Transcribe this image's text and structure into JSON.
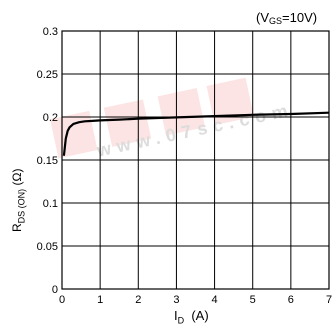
{
  "chart_data": {
    "type": "line",
    "condition_parts": {
      "open": "(V",
      "sub": "GS",
      "rest": "=10V)"
    },
    "xlabel_parts": {
      "main": "I",
      "sub": "D",
      "unit": "  (A)"
    },
    "ylabel_parts": {
      "main": "R",
      "sub": "DS (ON)",
      "unit": " (Ω)"
    },
    "xlim": [
      0,
      7
    ],
    "ylim": [
      0,
      0.3
    ],
    "x_ticks": [
      "0",
      "1",
      "2",
      "3",
      "4",
      "5",
      "6",
      "7"
    ],
    "y_ticks": [
      "0",
      "0.05",
      "0.1",
      "0.15",
      "0.2",
      "0.25",
      "0.3"
    ],
    "grid": true,
    "series": [
      {
        "color": "#000000",
        "x": [
          0.05,
          0.1,
          0.15,
          0.2,
          0.3,
          0.45,
          0.6,
          0.8,
          1.0,
          1.5,
          2.0,
          3.0,
          4.0,
          5.0,
          6.0,
          7.0
        ],
        "y": [
          0.155,
          0.175,
          0.184,
          0.188,
          0.192,
          0.194,
          0.195,
          0.1955,
          0.196,
          0.197,
          0.198,
          0.1995,
          0.201,
          0.2025,
          0.2035,
          0.205
        ]
      }
    ]
  },
  "watermark": {
    "text": "www.07sc.com",
    "logo_color": "#f4a6a6"
  }
}
